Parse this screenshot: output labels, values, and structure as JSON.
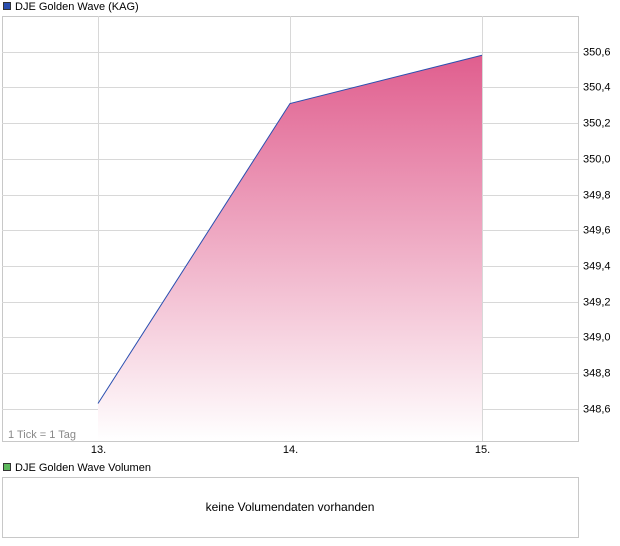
{
  "chart_data": {
    "type": "area",
    "legend": "DJE Golden Wave (KAG)",
    "note": "1 Tick = 1 Tag",
    "x": [
      13,
      14,
      15
    ],
    "series": [
      {
        "name": "DJE Golden Wave (KAG)",
        "color": "#2a4fb0",
        "values": [
          348.63,
          350.31,
          350.58
        ]
      }
    ],
    "xlim": [
      12.5,
      15.5
    ],
    "xticks": [
      {
        "value": 13,
        "label": "13."
      },
      {
        "value": 14,
        "label": "14."
      },
      {
        "value": 15,
        "label": "15."
      }
    ],
    "ylim": [
      348.42,
      350.8
    ],
    "yticks": [
      {
        "value": 348.6,
        "label": "348,6"
      },
      {
        "value": 348.8,
        "label": "348,8"
      },
      {
        "value": 349.0,
        "label": "349,0"
      },
      {
        "value": 349.2,
        "label": "349,2"
      },
      {
        "value": 349.4,
        "label": "349,4"
      },
      {
        "value": 349.6,
        "label": "349,6"
      },
      {
        "value": 349.8,
        "label": "349,8"
      },
      {
        "value": 350.0,
        "label": "350,0"
      },
      {
        "value": 350.2,
        "label": "350,2"
      },
      {
        "value": 350.4,
        "label": "350,4"
      },
      {
        "value": 350.6,
        "label": "350,6"
      }
    ],
    "grid": true,
    "volume": {
      "legend": "DJE Golden Wave Volumen",
      "color": "#5cb85c",
      "message": "keine Volumendaten vorhanden"
    }
  }
}
